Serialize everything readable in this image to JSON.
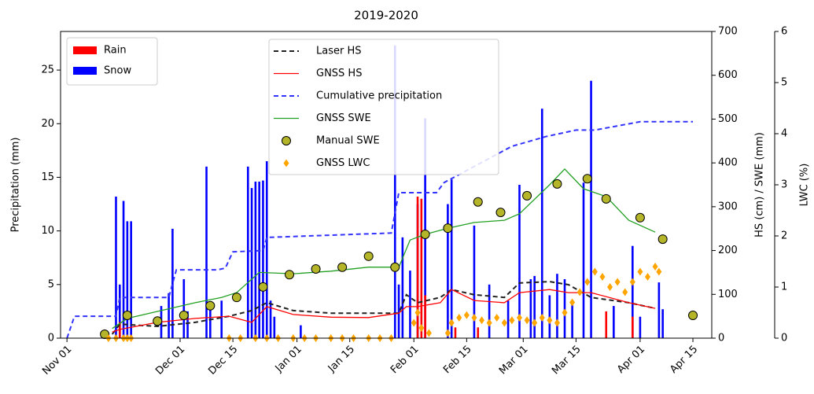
{
  "chart_data": {
    "type": "combo",
    "title": "2019-2020",
    "ylabel": "Precipitation (mm)",
    "y2label": "HS (cm) / SWE (mm)",
    "y3label": "LWC (%)",
    "xlim": [
      -1.7,
      171
    ],
    "xticks": [
      {
        "value": 0,
        "label": "Nov 01"
      },
      {
        "value": 30,
        "label": "Dec 01"
      },
      {
        "value": 44,
        "label": "Dec 15"
      },
      {
        "value": 61,
        "label": "Jan 01"
      },
      {
        "value": 75,
        "label": "Jan 15"
      },
      {
        "value": 92,
        "label": "Feb 01"
      },
      {
        "value": 106,
        "label": "Feb 15"
      },
      {
        "value": 121,
        "label": "Mar 01"
      },
      {
        "value": 135,
        "label": "Mar 15"
      },
      {
        "value": 152,
        "label": "Apr 01"
      },
      {
        "value": 166,
        "label": "Apr 15"
      }
    ],
    "ylim": [
      0,
      28.6
    ],
    "yticks": [
      0,
      5,
      10,
      15,
      20,
      25
    ],
    "y2lim": [
      0,
      700
    ],
    "y2ticks": [
      0,
      100,
      200,
      300,
      400,
      500,
      600,
      700
    ],
    "y3lim": [
      0,
      6
    ],
    "y3ticks": [
      0,
      1,
      2,
      3,
      4,
      5,
      6
    ],
    "bar_series": [
      {
        "name": "Snow",
        "color": "#0000ff",
        "x": [
          13,
          14,
          15,
          16,
          17,
          25,
          27,
          28,
          31,
          32,
          37,
          38,
          41,
          48,
          49,
          50,
          51,
          52,
          53,
          54,
          55,
          62,
          87,
          88,
          89,
          91,
          93,
          95,
          101,
          102,
          108,
          112,
          117,
          120,
          123,
          124,
          126,
          128,
          130,
          132,
          134,
          137,
          139,
          145,
          150,
          152,
          157,
          158
        ],
        "values": [
          13.2,
          5,
          12.8,
          10.9,
          10.9,
          3,
          4.2,
          10.2,
          5.5,
          2.5,
          16,
          3,
          3.5,
          16,
          14,
          14.6,
          14.6,
          14.7,
          16.5,
          3.5,
          2,
          1.2,
          27.3,
          5,
          9.4,
          6.3,
          12.5,
          20.5,
          12.5,
          14.8,
          10.5,
          5,
          3.5,
          14.3,
          5.5,
          5.8,
          21.4,
          4,
          6,
          5.5,
          3.5,
          14.5,
          24,
          3,
          8.6,
          2,
          5.2,
          2.7
        ]
      },
      {
        "name": "Rain",
        "color": "#ff0000",
        "x": [
          14,
          93,
          94,
          95,
          103,
          109,
          143,
          150
        ],
        "values": [
          1.5,
          13.2,
          13,
          4,
          1,
          1,
          2.5,
          2
        ]
      }
    ],
    "series": [
      {
        "name": "Laser HS",
        "color": "#222222",
        "linestyle": "dashed",
        "axis": "y2",
        "x": [
          12,
          14,
          24,
          34,
          43,
          49,
          53,
          60,
          70,
          80,
          88,
          90,
          93,
          99,
          102,
          108,
          116,
          120,
          128,
          133,
          139,
          149,
          156
        ],
        "values": [
          9,
          32,
          27,
          36,
          50,
          63,
          81,
          63,
          57,
          57,
          57,
          99,
          81,
          93,
          111,
          99,
          93,
          126,
          129,
          122,
          93,
          81,
          68
        ]
      },
      {
        "name": "GNSS HS",
        "color": "#ff0000",
        "linestyle": "solid",
        "axis": "y2",
        "x": [
          12,
          14,
          24,
          34,
          43,
          49,
          53,
          60,
          70,
          80,
          88,
          90,
          93,
          99,
          102,
          108,
          116,
          120,
          128,
          133,
          139,
          149,
          156
        ],
        "values": [
          14,
          20,
          36,
          45,
          50,
          36,
          72,
          54,
          48,
          47,
          57,
          72,
          72,
          81,
          111,
          86,
          81,
          104,
          111,
          104,
          104,
          81,
          68
        ]
      },
      {
        "name": "Cumulative precipitation",
        "color": "#3333ff",
        "linestyle": "dashed",
        "axis": "y2",
        "x": [
          0,
          2,
          13,
          14,
          27,
          29,
          40,
          42,
          44,
          52,
          53,
          86,
          88,
          98,
          100,
          118,
          127,
          135,
          140,
          152,
          166
        ],
        "values": [
          0,
          50,
          50,
          93,
          93,
          156,
          156,
          160,
          197,
          200,
          230,
          240,
          332,
          332,
          355,
          438,
          460,
          475,
          475,
          494,
          494
        ]
      },
      {
        "name": "GNSS SWE",
        "color": "#22a022",
        "linestyle": "solid",
        "axis": "y2",
        "x": [
          12,
          16,
          34,
          41,
          45,
          51,
          60,
          70,
          80,
          88,
          91,
          95,
          101,
          108,
          116,
          120,
          128,
          132,
          137,
          143,
          149,
          156
        ],
        "values": [
          22,
          45,
          81,
          93,
          104,
          150,
          147,
          153,
          162,
          162,
          224,
          237,
          251,
          264,
          269,
          284,
          350,
          386,
          341,
          323,
          269,
          242
        ]
      },
      {
        "name": "Manual SWE",
        "color": "#b5b52a",
        "edgecolor": "#000000",
        "marker": "circle",
        "axis": "y2",
        "x": [
          10,
          16,
          24,
          31,
          38,
          45,
          52,
          59,
          66,
          73,
          80,
          87,
          95,
          101,
          109,
          115,
          122,
          130,
          138,
          143,
          152,
          158,
          166
        ],
        "values": [
          9,
          52,
          39,
          52,
          74,
          93,
          117,
          145,
          158,
          162,
          187,
          162,
          237,
          251,
          311,
          287,
          325,
          352,
          364,
          318,
          275,
          226,
          52
        ]
      },
      {
        "name": "GNSS LWC",
        "color": "#ffa500",
        "marker": "diamond",
        "axis": "y3",
        "x": [
          11,
          13,
          15,
          16,
          17,
          43,
          46,
          50,
          53,
          56,
          60,
          63,
          66,
          70,
          73,
          76,
          80,
          83,
          86,
          92,
          93,
          94,
          96,
          101,
          102,
          104,
          106,
          108,
          110,
          112,
          114,
          116,
          118,
          120,
          122,
          124,
          126,
          128,
          130,
          132,
          134,
          136,
          138,
          140,
          142,
          144,
          146,
          148,
          150,
          152,
          154,
          156,
          157
        ],
        "values": [
          0,
          0,
          0,
          0,
          0,
          0,
          0,
          0,
          0,
          0,
          0,
          0,
          0,
          0,
          0,
          0,
          0,
          0,
          0,
          0.3,
          0.5,
          0.2,
          0.1,
          0.1,
          0.3,
          0.4,
          0.45,
          0.4,
          0.35,
          0.3,
          0.4,
          0.3,
          0.35,
          0.4,
          0.35,
          0.3,
          0.4,
          0.35,
          0.3,
          0.5,
          0.7,
          0.9,
          1.1,
          1.3,
          1.2,
          1.0,
          1.1,
          0.9,
          1.1,
          1.3,
          1.2,
          1.4,
          1.3
        ]
      }
    ]
  }
}
